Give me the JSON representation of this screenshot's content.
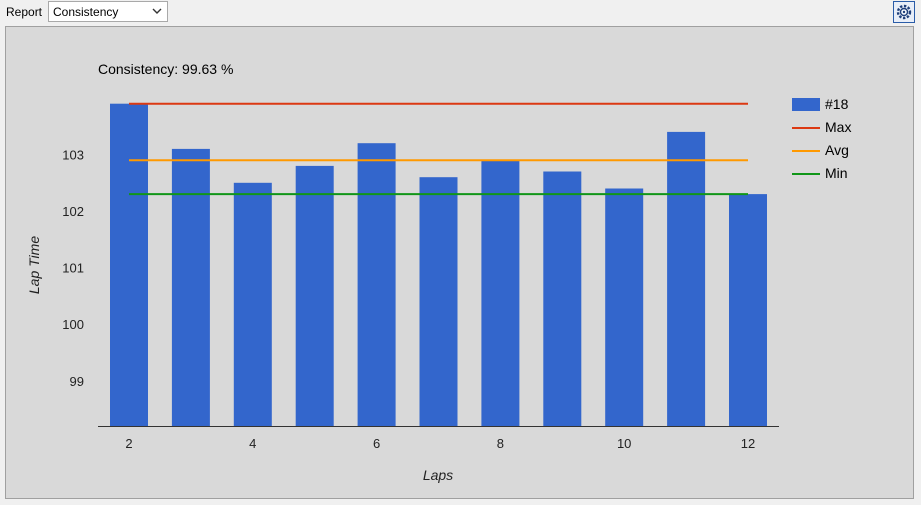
{
  "toolbar": {
    "report_label": "Report",
    "report_selected": "Consistency"
  },
  "icons": {
    "settings": "gear-icon",
    "dropdown": "chevron-down-icon"
  },
  "colors": {
    "bar": "#3366cc",
    "max": "#dc3912",
    "avg": "#ff9900",
    "min": "#109618"
  },
  "chart_data": {
    "type": "bar",
    "title": "Consistency: 99.63 %",
    "xlabel": "Laps",
    "ylabel": "Lap Time",
    "x": [
      2,
      3,
      4,
      5,
      6,
      7,
      8,
      9,
      10,
      11,
      12
    ],
    "series": [
      {
        "name": "#18",
        "type": "bar",
        "values": [
          103.9,
          103.1,
          102.5,
          102.8,
          103.2,
          102.6,
          102.9,
          102.7,
          102.4,
          103.4,
          102.3
        ]
      },
      {
        "name": "Max",
        "type": "line",
        "value": 103.9
      },
      {
        "name": "Avg",
        "type": "line",
        "value": 102.9
      },
      {
        "name": "Min",
        "type": "line",
        "value": 102.3
      }
    ],
    "x_ticks": [
      2,
      4,
      6,
      8,
      10,
      12
    ],
    "y_ticks": [
      99,
      100,
      101,
      102,
      103
    ],
    "ylim": [
      98.2,
      104.0
    ],
    "grid": false,
    "legend_position": "right"
  }
}
